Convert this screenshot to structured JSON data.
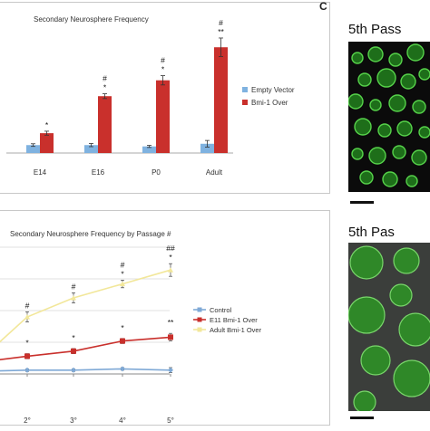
{
  "panel_labels": {
    "c": "C"
  },
  "micrographs": [
    {
      "title": "5th Pass"
    },
    {
      "title": "5th Pas"
    }
  ],
  "colors": {
    "empty_vector": "#7fb2e0",
    "bmi1_over": "#c9302c",
    "control": "#7fa9d6",
    "e11_bmi1": "#c9302c",
    "adult_bmi1": "#f2e79a",
    "grid": "#d8d8d8"
  },
  "chart_data": [
    {
      "type": "bar",
      "title": "Secondary Neurosphere Frequency",
      "categories": [
        "E14",
        "E16",
        "P0",
        "Adult"
      ],
      "ylim": [
        0,
        1
      ],
      "series": [
        {
          "name": "Empty Vector",
          "values": [
            0.06,
            0.06,
            0.05,
            0.07
          ],
          "errors": [
            0.01,
            0.012,
            0.008,
            0.025
          ]
        },
        {
          "name": "Bmi-1 Over",
          "values": [
            0.15,
            0.43,
            0.55,
            0.8
          ],
          "errors": [
            0.015,
            0.018,
            0.035,
            0.07
          ]
        }
      ],
      "annotations": [
        {
          "category": "E14",
          "marks": [
            "*"
          ]
        },
        {
          "category": "E16",
          "marks": [
            "#",
            "*"
          ]
        },
        {
          "category": "P0",
          "marks": [
            "#",
            "*"
          ]
        },
        {
          "category": "Adult",
          "marks": [
            "#",
            "**"
          ]
        }
      ],
      "legend_position": "right"
    },
    {
      "type": "line",
      "title": "Secondary Neurosphere Frequency by Passage #",
      "x": [
        "2°",
        "3°",
        "4°",
        "5°"
      ],
      "ylim": [
        0,
        1
      ],
      "series": [
        {
          "name": "Control",
          "values": [
            0.03,
            0.03,
            0.04,
            0.03
          ],
          "errors": [
            0.01,
            0.01,
            0.01,
            0.02
          ]
        },
        {
          "name": "E11 Bmi-1 Over",
          "values": [
            0.14,
            0.18,
            0.26,
            0.29
          ],
          "errors": [
            0.02,
            0.02,
            0.02,
            0.03
          ]
        },
        {
          "name": "Adult Bmi-1 Over",
          "values": [
            0.45,
            0.6,
            0.71,
            0.82
          ],
          "errors": [
            0.04,
            0.04,
            0.03,
            0.05
          ]
        }
      ],
      "annotations": [
        {
          "x": "2°",
          "upper": [
            "#"
          ],
          "lower": [
            "*"
          ]
        },
        {
          "x": "3°",
          "upper": [
            "#"
          ],
          "lower": [
            "*"
          ]
        },
        {
          "x": "4°",
          "upper": [
            "#",
            "*"
          ],
          "lower": [
            "*"
          ]
        },
        {
          "x": "5°",
          "upper": [
            "##",
            "*"
          ],
          "lower": [
            "**"
          ]
        }
      ],
      "legend_position": "right",
      "grid": true
    }
  ]
}
